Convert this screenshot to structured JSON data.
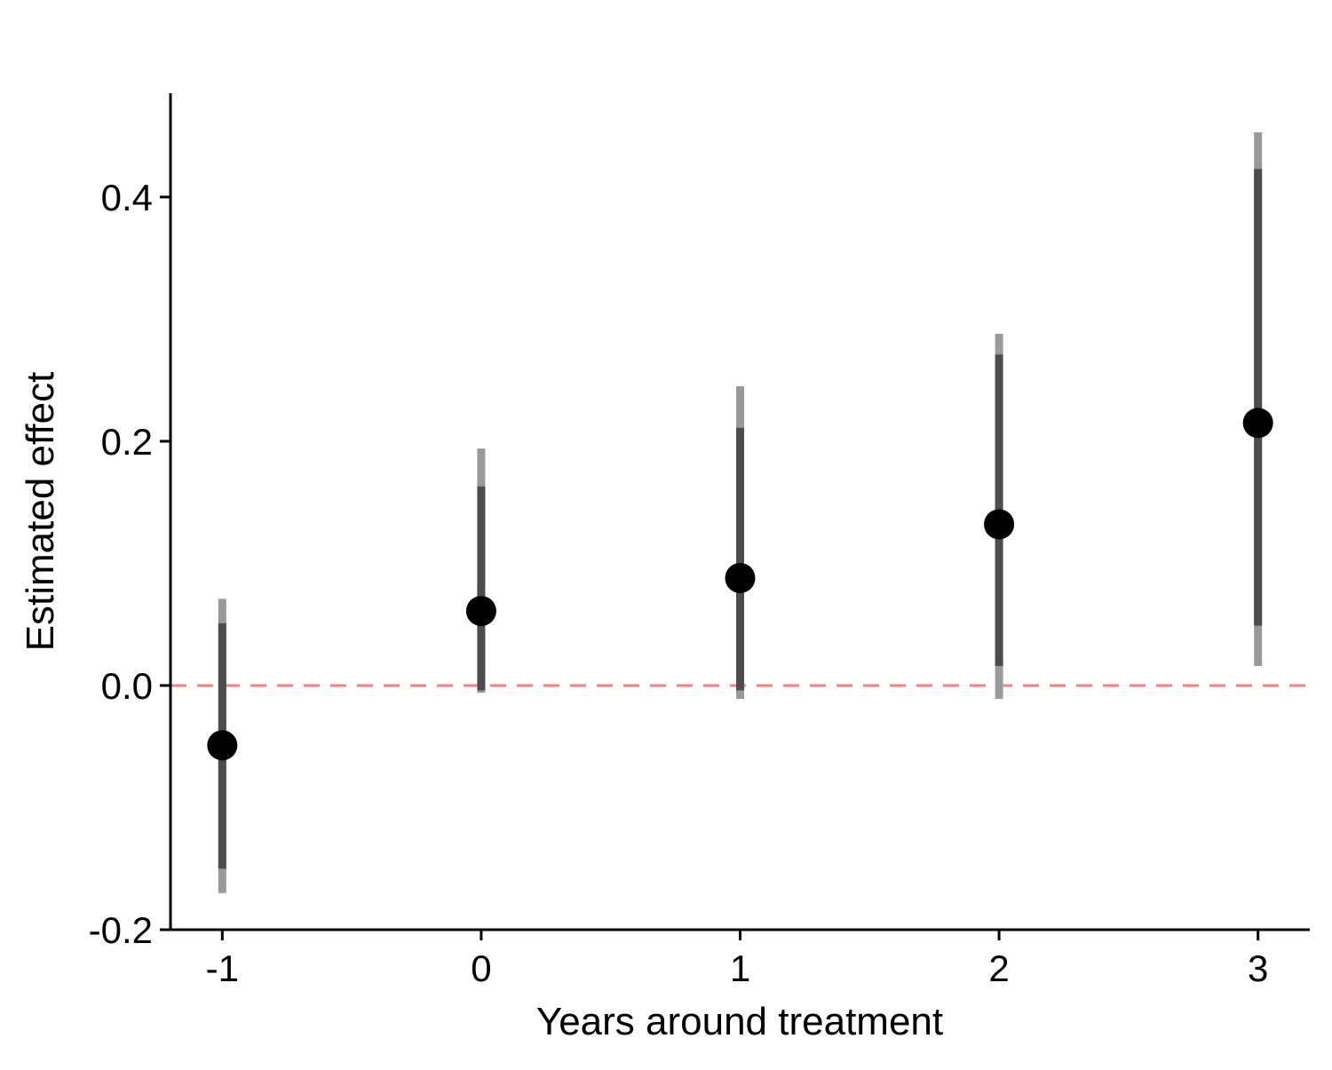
{
  "chart_data": {
    "type": "scatter",
    "subtype": "coefficient-plot with confidence intervals",
    "title": "",
    "xlabel": "Years around treatment",
    "ylabel": "Estimated effect",
    "x": [
      -1,
      0,
      1,
      2,
      3
    ],
    "x_tick_labels": [
      "-1",
      "0",
      "1",
      "2",
      "3"
    ],
    "y_ticks": [
      -0.2,
      0.0,
      0.2,
      0.4
    ],
    "y_tick_labels": [
      "-0.2",
      "0.0",
      "0.2",
      "0.4"
    ],
    "xlim": [
      -1.2,
      3.2
    ],
    "ylim": [
      -0.2,
      0.485
    ],
    "series": [
      {
        "estimates": [
          -0.049,
          0.061,
          0.088,
          0.132,
          0.215
        ],
        "ci_inner_low": [
          -0.15,
          -0.004,
          -0.004,
          0.016,
          0.049
        ],
        "ci_inner_high": [
          0.051,
          0.163,
          0.211,
          0.271,
          0.423
        ],
        "ci_outer_low": [
          -0.17,
          -0.006,
          -0.011,
          -0.011,
          0.016
        ],
        "ci_outer_high": [
          0.071,
          0.194,
          0.245,
          0.288,
          0.453
        ]
      }
    ],
    "reference_line": {
      "y": 0.0,
      "style": "dashed",
      "color": "#f8807f"
    },
    "colors": {
      "point": "#000000",
      "ci_inner": "#4d4d4d",
      "ci_outer": "#999999",
      "axis": "#000000"
    },
    "grid": false,
    "legend": "none"
  }
}
